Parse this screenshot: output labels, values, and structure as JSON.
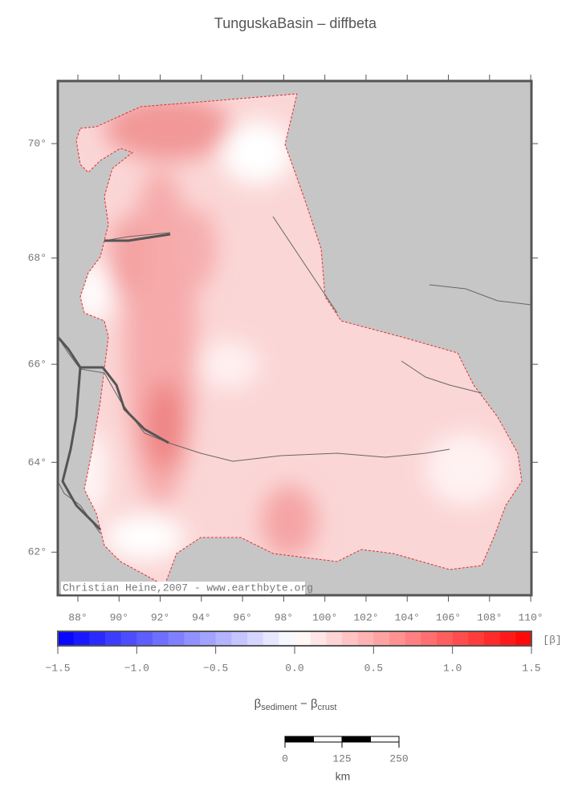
{
  "title": "TunguskaBasin – diffbeta",
  "map": {
    "lat_ticks": [
      {
        "value": 70,
        "label": "70°"
      },
      {
        "value": 68,
        "label": "68°"
      },
      {
        "value": 66,
        "label": "66°"
      },
      {
        "value": 64,
        "label": "64°"
      },
      {
        "value": 62,
        "label": "62°"
      }
    ],
    "lon_ticks": [
      {
        "value": 88,
        "label": "88°"
      },
      {
        "value": 90,
        "label": "90°"
      },
      {
        "value": 92,
        "label": "92°"
      },
      {
        "value": 94,
        "label": "94°"
      },
      {
        "value": 96,
        "label": "96°"
      },
      {
        "value": 98,
        "label": "98°"
      },
      {
        "value": 100,
        "label": "100°"
      },
      {
        "value": 102,
        "label": "102°"
      },
      {
        "value": 104,
        "label": "104°"
      },
      {
        "value": 106,
        "label": "106°"
      },
      {
        "value": 108,
        "label": "108°"
      },
      {
        "value": 110,
        "label": "110°"
      }
    ],
    "credit": "Christian Heine,2007 - www.earthbyte.org"
  },
  "colorbar": {
    "ticks": [
      {
        "value": -1.5,
        "label": "−1.5"
      },
      {
        "value": -1.0,
        "label": "−1.0"
      },
      {
        "value": -0.5,
        "label": "−0.5"
      },
      {
        "value": 0,
        "label": "0.0"
      },
      {
        "value": 0.5,
        "label": "0.5"
      },
      {
        "value": 1.0,
        "label": "1.0"
      },
      {
        "value": 1.5,
        "label": "1.5"
      }
    ],
    "unit": "[β]",
    "label": {
      "symbol_1": "β",
      "sub_1": "sediment",
      "operator": " − ",
      "symbol_2": "β",
      "sub_2": "crust"
    }
  },
  "scale_bar": {
    "ticks": [
      0,
      125,
      250
    ],
    "unit": "km"
  }
}
